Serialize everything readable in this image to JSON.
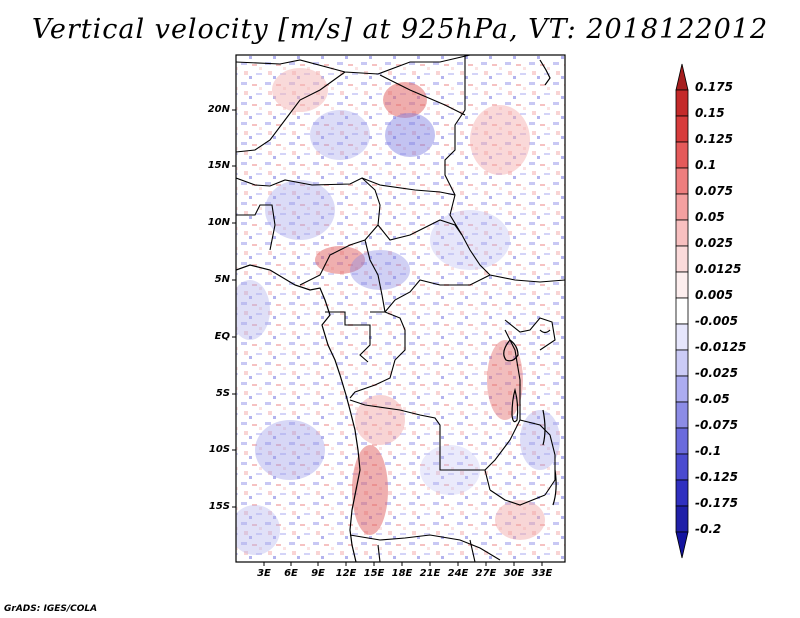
{
  "title": "Vertical velocity [m/s] at 925hPa, VT: 2018122012",
  "credit": "GrADS: IGES/COLA",
  "map": {
    "lat_labels": [
      "20N",
      "15N",
      "10N",
      "5N",
      "EQ",
      "5S",
      "10S",
      "15S"
    ],
    "lon_labels": [
      "3E",
      "6E",
      "9E",
      "12E",
      "15E",
      "18E",
      "21E",
      "24E",
      "27E",
      "30E",
      "33E"
    ]
  },
  "colorbar": {
    "labels": [
      "0.175",
      "0.15",
      "0.125",
      "0.1",
      "0.075",
      "0.05",
      "0.025",
      "0.0125",
      "0.005",
      "-0.005",
      "-0.0125",
      "-0.025",
      "-0.05",
      "-0.075",
      "-0.1",
      "-0.125",
      "-0.175",
      "-0.2"
    ],
    "colors": [
      "#a51e1e",
      "#c42a2a",
      "#d73c3c",
      "#e55a5a",
      "#ee7e7e",
      "#f4a0a0",
      "#f8c0c0",
      "#fbdada",
      "#fdeeee",
      "#ffffff",
      "#e6e6fc",
      "#cbcbf6",
      "#acacf0",
      "#8c8ce6",
      "#6a6adc",
      "#4b4bd0",
      "#3030c0",
      "#2020a8",
      "#1414a0"
    ]
  }
}
